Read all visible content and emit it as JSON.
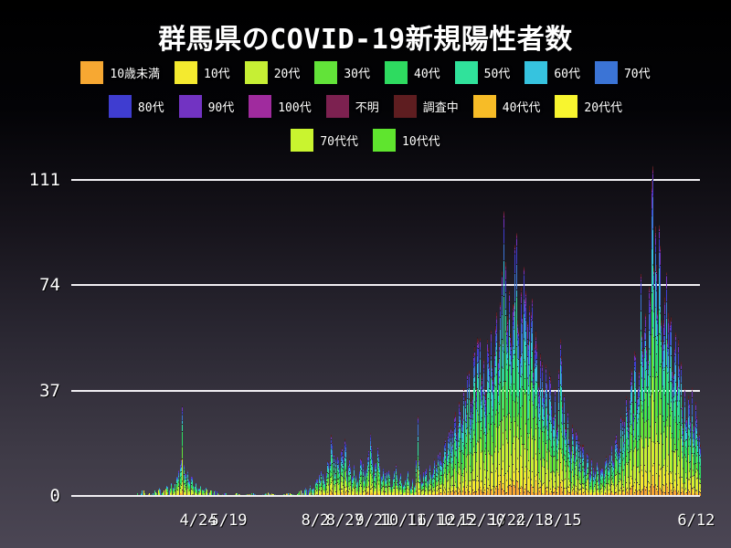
{
  "title": "群馬県のCOVID-19新規陽性者数",
  "colors": {
    "background_top": "#000000",
    "background_bottom": "#4b4654",
    "grid": "#f0eef2",
    "text": "#ffffff",
    "segment_separator": "#16141c"
  },
  "chart_data": {
    "type": "bar",
    "stacked": true,
    "title": "群馬県のCOVID-19新規陽性者数",
    "xlabel": "",
    "ylabel": "",
    "ylim": [
      0,
      111
    ],
    "grid": "horizontal",
    "legend_position": "top",
    "yticks": [
      {
        "label": "0",
        "value": 0
      },
      {
        "label": "37",
        "value": 37
      },
      {
        "label": "74",
        "value": 74
      },
      {
        "label": "111",
        "value": 111
      }
    ],
    "xticks": [
      {
        "label": "4/24",
        "pos": 0.202
      },
      {
        "label": "5/19",
        "pos": 0.25
      },
      {
        "label": "8/2",
        "pos": 0.388
      },
      {
        "label": "8/27",
        "pos": 0.435
      },
      {
        "label": "9/21",
        "pos": 0.481
      },
      {
        "label": "10/16",
        "pos": 0.528
      },
      {
        "label": "11/10",
        "pos": 0.571
      },
      {
        "label": "12/5",
        "pos": 0.612
      },
      {
        "label": "12/30",
        "pos": 0.653
      },
      {
        "label": "1/24",
        "pos": 0.693
      },
      {
        "label": "2/18",
        "pos": 0.737
      },
      {
        "label": "3/15",
        "pos": 0.782
      },
      {
        "label": "6/12",
        "pos": 0.994
      }
    ],
    "series": [
      {
        "name": "10歳未満",
        "color": "#F7A832",
        "share": 0.048,
        "legend_row": 0
      },
      {
        "name": "10代",
        "color": "#F4EA2F",
        "share": 0.085,
        "legend_row": 0
      },
      {
        "name": "20代",
        "color": "#C6EF34",
        "share": 0.175,
        "legend_row": 0
      },
      {
        "name": "30代",
        "color": "#62E339",
        "share": 0.15,
        "legend_row": 0
      },
      {
        "name": "40代",
        "color": "#2EDB60",
        "share": 0.135,
        "legend_row": 0
      },
      {
        "name": "50代",
        "color": "#30E29B",
        "share": 0.12,
        "legend_row": 0
      },
      {
        "name": "60代",
        "color": "#36C3DF",
        "share": 0.09,
        "legend_row": 0
      },
      {
        "name": "70代",
        "color": "#3B74D6",
        "share": 0.075,
        "legend_row": 0
      },
      {
        "name": "80代",
        "color": "#3F3DD0",
        "share": 0.057,
        "legend_row": 1
      },
      {
        "name": "90代",
        "color": "#7233C2",
        "share": 0.033,
        "legend_row": 1
      },
      {
        "name": "100代",
        "color": "#A02B9E",
        "share": 0.004,
        "legend_row": 1
      },
      {
        "name": "不明",
        "color": "#7C2150",
        "share": 0.008,
        "legend_row": 1
      },
      {
        "name": "調査中",
        "color": "#5E1D20",
        "share": 0.02,
        "legend_row": 1
      },
      {
        "name": "40代代",
        "color": "#F7BC27",
        "share": 0.0,
        "legend_row": 1
      },
      {
        "name": "20代代",
        "color": "#F8F52F",
        "share": 0.0,
        "legend_row": 1
      },
      {
        "name": "70代代",
        "color": "#C9F42F",
        "share": 0.0,
        "legend_row": 2
      },
      {
        "name": "10代代",
        "color": "#5FE52E",
        "share": 0.0,
        "legend_row": 2
      }
    ],
    "n_days": 463,
    "first_day_pos": 0.1047,
    "peak_total": 111,
    "noise": {
      "seed": 7,
      "amplitude": 0.3,
      "share_jitter": 1.4
    },
    "envelope_points": [
      [
        0,
        1
      ],
      [
        2,
        0
      ],
      [
        4,
        2
      ],
      [
        6,
        1
      ],
      [
        8,
        0
      ],
      [
        10,
        1
      ],
      [
        12,
        0
      ],
      [
        14,
        2
      ],
      [
        16,
        1
      ],
      [
        18,
        3
      ],
      [
        20,
        1
      ],
      [
        22,
        2
      ],
      [
        24,
        4
      ],
      [
        26,
        2
      ],
      [
        28,
        5
      ],
      [
        30,
        3
      ],
      [
        32,
        7
      ],
      [
        34,
        9
      ],
      [
        36,
        13
      ],
      [
        37,
        32
      ],
      [
        38,
        11
      ],
      [
        40,
        8
      ],
      [
        42,
        6
      ],
      [
        44,
        7
      ],
      [
        46,
        4
      ],
      [
        48,
        5
      ],
      [
        50,
        3
      ],
      [
        52,
        4
      ],
      [
        54,
        2
      ],
      [
        56,
        3
      ],
      [
        58,
        1
      ],
      [
        60,
        2
      ],
      [
        62,
        1
      ],
      [
        64,
        2
      ],
      [
        66,
        1
      ],
      [
        68,
        0
      ],
      [
        72,
        1
      ],
      [
        76,
        0
      ],
      [
        82,
        1
      ],
      [
        86,
        0
      ],
      [
        94,
        1
      ],
      [
        100,
        0
      ],
      [
        108,
        1
      ],
      [
        116,
        0
      ],
      [
        124,
        1
      ],
      [
        130,
        0
      ],
      [
        134,
        2
      ],
      [
        136,
        1
      ],
      [
        138,
        3
      ],
      [
        140,
        2
      ],
      [
        142,
        4
      ],
      [
        145,
        3
      ],
      [
        148,
        6
      ],
      [
        151,
        9
      ],
      [
        154,
        5
      ],
      [
        157,
        12
      ],
      [
        160,
        19
      ],
      [
        162,
        8
      ],
      [
        164,
        14
      ],
      [
        166,
        10
      ],
      [
        168,
        17
      ],
      [
        170,
        20
      ],
      [
        172,
        9
      ],
      [
        174,
        13
      ],
      [
        176,
        7
      ],
      [
        178,
        11
      ],
      [
        180,
        5
      ],
      [
        182,
        9
      ],
      [
        184,
        13
      ],
      [
        186,
        6
      ],
      [
        188,
        10
      ],
      [
        190,
        16
      ],
      [
        192,
        18
      ],
      [
        194,
        8
      ],
      [
        196,
        12
      ],
      [
        198,
        15
      ],
      [
        200,
        7
      ],
      [
        202,
        10
      ],
      [
        204,
        6
      ],
      [
        206,
        9
      ],
      [
        208,
        4
      ],
      [
        210,
        7
      ],
      [
        212,
        11
      ],
      [
        214,
        5
      ],
      [
        216,
        8
      ],
      [
        218,
        4
      ],
      [
        220,
        6
      ],
      [
        222,
        9
      ],
      [
        224,
        3
      ],
      [
        226,
        6
      ],
      [
        228,
        4
      ],
      [
        230,
        28
      ],
      [
        232,
        8
      ],
      [
        234,
        5
      ],
      [
        236,
        9
      ],
      [
        238,
        6
      ],
      [
        240,
        11
      ],
      [
        242,
        8
      ],
      [
        244,
        13
      ],
      [
        246,
        10
      ],
      [
        248,
        16
      ],
      [
        250,
        12
      ],
      [
        252,
        19
      ],
      [
        254,
        15
      ],
      [
        256,
        23
      ],
      [
        258,
        18
      ],
      [
        260,
        28
      ],
      [
        262,
        22
      ],
      [
        264,
        33
      ],
      [
        266,
        26
      ],
      [
        268,
        38
      ],
      [
        270,
        30
      ],
      [
        272,
        44
      ],
      [
        274,
        34
      ],
      [
        276,
        50
      ],
      [
        278,
        38
      ],
      [
        280,
        55
      ],
      [
        282,
        40
      ],
      [
        284,
        48
      ],
      [
        286,
        36
      ],
      [
        288,
        52
      ],
      [
        290,
        58
      ],
      [
        292,
        42
      ],
      [
        294,
        60
      ],
      [
        296,
        48
      ],
      [
        298,
        68
      ],
      [
        300,
        55
      ],
      [
        301,
        100
      ],
      [
        303,
        60
      ],
      [
        305,
        72
      ],
      [
        307,
        55
      ],
      [
        310,
        88
      ],
      [
        312,
        62
      ],
      [
        314,
        50
      ],
      [
        316,
        64
      ],
      [
        319,
        72
      ],
      [
        321,
        55
      ],
      [
        323,
        65
      ],
      [
        325,
        45
      ],
      [
        327,
        58
      ],
      [
        329,
        40
      ],
      [
        331,
        50
      ],
      [
        333,
        35
      ],
      [
        335,
        46
      ],
      [
        337,
        30
      ],
      [
        339,
        42
      ],
      [
        341,
        28
      ],
      [
        343,
        38
      ],
      [
        345,
        25
      ],
      [
        347,
        55
      ],
      [
        349,
        32
      ],
      [
        351,
        24
      ],
      [
        353,
        30
      ],
      [
        355,
        18
      ],
      [
        357,
        25
      ],
      [
        359,
        15
      ],
      [
        361,
        22
      ],
      [
        363,
        12
      ],
      [
        365,
        18
      ],
      [
        367,
        10
      ],
      [
        369,
        15
      ],
      [
        371,
        8
      ],
      [
        373,
        13
      ],
      [
        375,
        7
      ],
      [
        377,
        12
      ],
      [
        379,
        6
      ],
      [
        381,
        10
      ],
      [
        383,
        8
      ],
      [
        385,
        14
      ],
      [
        387,
        10
      ],
      [
        389,
        18
      ],
      [
        391,
        12
      ],
      [
        393,
        22
      ],
      [
        395,
        16
      ],
      [
        397,
        28
      ],
      [
        399,
        20
      ],
      [
        401,
        35
      ],
      [
        403,
        25
      ],
      [
        405,
        42
      ],
      [
        407,
        30
      ],
      [
        409,
        50
      ],
      [
        411,
        38
      ],
      [
        413,
        78
      ],
      [
        415,
        52
      ],
      [
        417,
        64
      ],
      [
        419,
        48
      ],
      [
        421,
        70
      ],
      [
        422,
        111
      ],
      [
        424,
        80
      ],
      [
        425,
        95
      ],
      [
        427,
        65
      ],
      [
        429,
        88
      ],
      [
        431,
        55
      ],
      [
        433,
        70
      ],
      [
        435,
        55
      ],
      [
        437,
        62
      ],
      [
        439,
        45
      ],
      [
        441,
        52
      ],
      [
        443,
        40
      ],
      [
        445,
        46
      ],
      [
        447,
        32
      ],
      [
        449,
        38
      ],
      [
        451,
        28
      ],
      [
        453,
        33
      ],
      [
        455,
        38
      ],
      [
        457,
        25
      ],
      [
        459,
        28
      ],
      [
        461,
        22
      ],
      [
        462,
        18
      ]
    ]
  }
}
